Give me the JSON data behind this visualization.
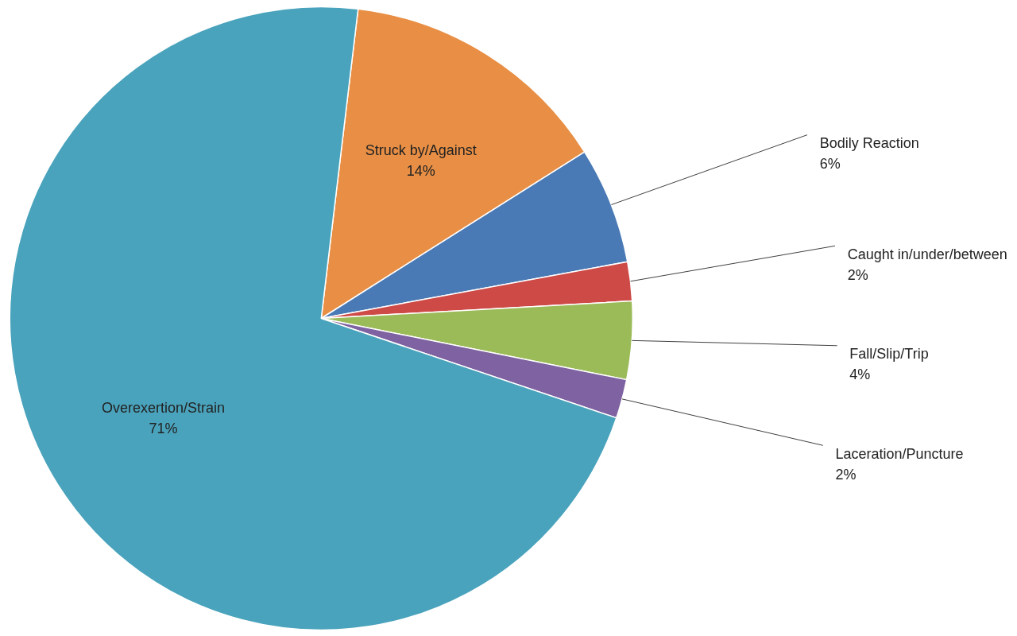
{
  "chart_data": {
    "type": "pie",
    "categories": [
      "Struck by/Against",
      "Bodily Reaction",
      "Caught in/under/between",
      "Fall/Slip/Trip",
      "Laceration/Puncture",
      "Overexertion/Strain"
    ],
    "values": [
      14,
      6,
      2,
      4,
      2,
      71
    ],
    "colors": [
      "#e88f45",
      "#4a7ab5",
      "#cd4a47",
      "#9bbb59",
      "#7e62a1",
      "#4aa3bc"
    ],
    "value_labels": [
      "14%",
      "6%",
      "2%",
      "4%",
      "2%",
      "71%"
    ]
  }
}
